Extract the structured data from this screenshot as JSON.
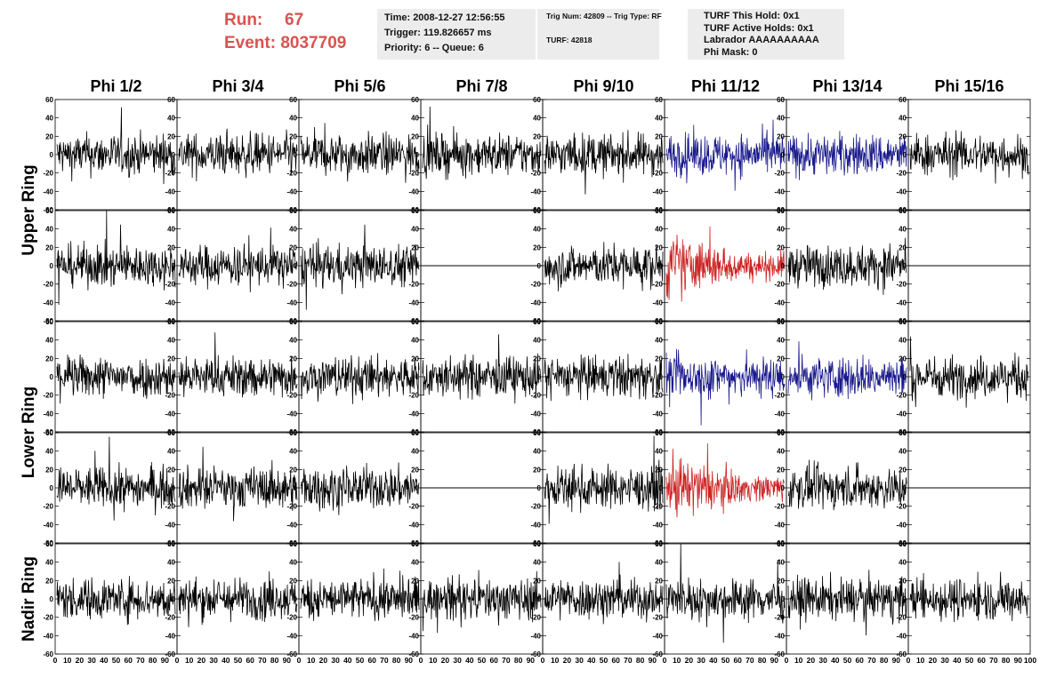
{
  "header": {
    "run_label": "Run:",
    "run_value": "67",
    "event_label": "Event:",
    "event_value": "8037709"
  },
  "info_boxes": [
    {
      "lines": [
        "Time: 2008-12-27 12:56:55",
        "Trigger: 119.826657 ms",
        "Priority: 6 -- Queue: 6"
      ]
    },
    {
      "lines": [
        "Trig Num: 42809 -- Trig Type: RF",
        "TURF: 42818"
      ]
    },
    {
      "lines": [
        "TURF This Hold: 0x1",
        "TURF Active Holds: 0x1",
        "Labrador AAAAAAAAAA",
        "Phi Mask: 0"
      ]
    }
  ],
  "colors": {
    "normal": "#000000",
    "blue": "#1a1a8c",
    "red": "#cc2222",
    "panel_border": "#000000"
  },
  "chart_data": {
    "type": "line",
    "columns": [
      "Phi 1/2",
      "Phi 3/4",
      "Phi 5/6",
      "Phi 7/8",
      "Phi 9/10",
      "Phi 11/12",
      "Phi 13/14",
      "Phi 15/16"
    ],
    "ring_labels": [
      "Upper Ring",
      "Lower Ring",
      "Nadir Ring"
    ],
    "rows": [
      {
        "ring": "Upper Ring",
        "panels": [
          "normal",
          "normal",
          "normal",
          "normal",
          "normal",
          "blue",
          "blue",
          "normal"
        ]
      },
      {
        "ring": "Upper Ring",
        "panels": [
          "normal",
          "normal",
          "normal",
          "flat",
          "normal",
          "red",
          "normal",
          "flat"
        ]
      },
      {
        "ring": "Lower Ring",
        "panels": [
          "normal",
          "normal",
          "normal",
          "normal",
          "normal",
          "blue",
          "blue",
          "normal"
        ]
      },
      {
        "ring": "Lower Ring",
        "panels": [
          "normal",
          "normal",
          "normal",
          "flat",
          "normal",
          "red",
          "normal",
          "flat"
        ]
      },
      {
        "ring": "Nadir Ring",
        "panels": [
          "normal",
          "normal",
          "normal",
          "normal",
          "normal",
          "normal",
          "normal",
          "normal"
        ]
      }
    ],
    "ylim": [
      -60,
      60
    ],
    "yticks": [
      60,
      40,
      20,
      0,
      -20,
      -40,
      -60
    ],
    "xlim": [
      0,
      100
    ],
    "xtick_labels": [
      "0",
      "10",
      "20",
      "30",
      "40",
      "50",
      "60",
      "70",
      "80",
      "90",
      "100"
    ],
    "grid": false,
    "waveform_amplitude_typical": 15,
    "samples_per_trace": 256
  }
}
